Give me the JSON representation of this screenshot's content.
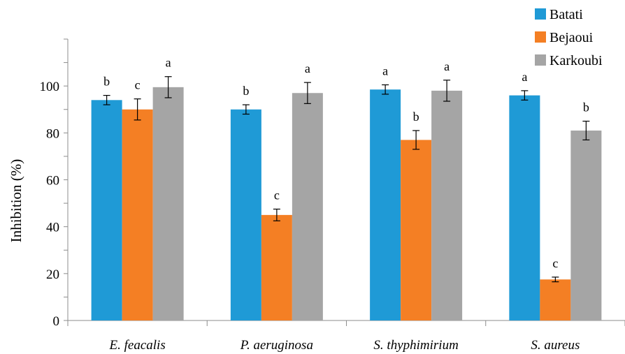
{
  "chart_data": {
    "type": "bar",
    "ylabel": "Inhibition (%)",
    "ylim": [
      0,
      120
    ],
    "yticks": [
      0,
      20,
      40,
      60,
      80,
      100
    ],
    "grid": false,
    "legend_position": "top-right",
    "categories": [
      "E. feacalis",
      "P. aeruginosa",
      "S. thyphimirium",
      "S. aureus"
    ],
    "series": [
      {
        "name": "Batati",
        "color": "#1f9ad6",
        "values": [
          94,
          90,
          98.5,
          96
        ],
        "errors": [
          2,
          2,
          2,
          2
        ],
        "letters": [
          "b",
          "b",
          "a",
          "a"
        ]
      },
      {
        "name": "Bejaoui",
        "color": "#f47f24",
        "values": [
          90,
          45,
          77,
          17.5
        ],
        "errors": [
          4.5,
          2.5,
          4,
          1
        ],
        "letters": [
          "c",
          "c",
          "b",
          "c"
        ]
      },
      {
        "name": "Karkoubi",
        "color": "#a5a5a5",
        "values": [
          99.5,
          97,
          98,
          81
        ],
        "errors": [
          4.5,
          4.5,
          4.5,
          4
        ],
        "letters": [
          "a",
          "a",
          "a",
          "b"
        ]
      }
    ]
  }
}
